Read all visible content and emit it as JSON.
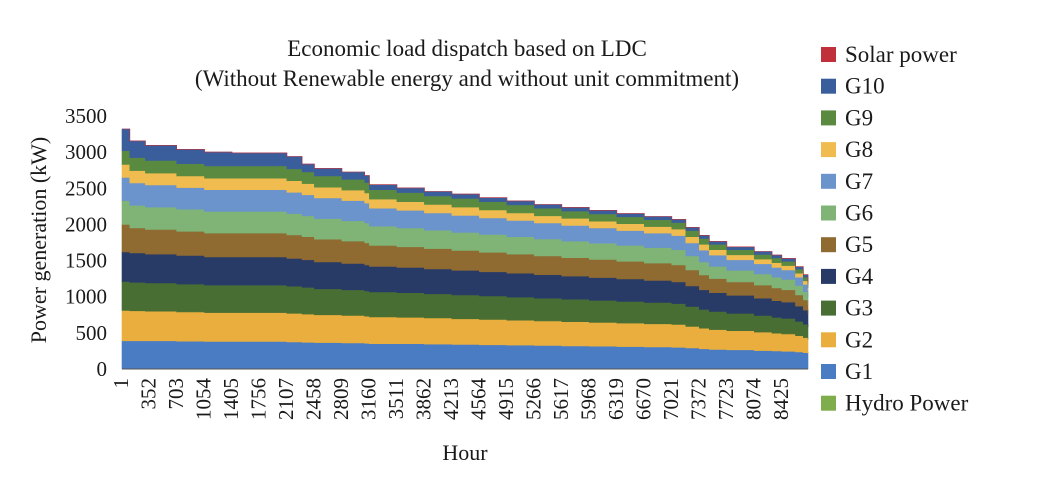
{
  "chart_data": {
    "type": "area",
    "title": [
      "Economic load dispatch based on LDC",
      "(Without Renewable energy and without unit commitment)"
    ],
    "xlabel": "Hour",
    "ylabel": "Power generation (kW)",
    "ylim": [
      0,
      3500
    ],
    "yticks": [
      "0",
      "500",
      "1000",
      "1500",
      "2000",
      "2500",
      "3000",
      "3500"
    ],
    "xlim": [
      1,
      8760
    ],
    "xticks": [
      "1",
      "352",
      "703",
      "1054",
      "1405",
      "1756",
      "2107",
      "2458",
      "2809",
      "3160",
      "3511",
      "3862",
      "4213",
      "4564",
      "4915",
      "5266",
      "5617",
      "5968",
      "6319",
      "6670",
      "7021",
      "7372",
      "7723",
      "8074",
      "8425"
    ],
    "grid": false,
    "legend_position": "right",
    "legend": [
      "Solar power",
      "G10",
      "G9",
      "G8",
      "G7",
      "G6",
      "G5",
      "G4",
      "G3",
      "G2",
      "G1",
      "Hydro Power"
    ],
    "x": [
      1,
      100,
      300,
      700,
      1054,
      1405,
      2107,
      2300,
      2458,
      2809,
      3100,
      3160,
      3511,
      3862,
      4213,
      4564,
      4915,
      5266,
      5617,
      5968,
      6319,
      6670,
      7021,
      7200,
      7372,
      7500,
      7723,
      8074,
      8300,
      8425,
      8600,
      8700,
      8760
    ],
    "series": [
      {
        "name": "Hydro Power",
        "color": "#7fad4b",
        "values": [
          0,
          0,
          0,
          0,
          0,
          0,
          0,
          0,
          0,
          0,
          0,
          0,
          0,
          0,
          0,
          0,
          0,
          0,
          0,
          0,
          0,
          0,
          0,
          0,
          0,
          0,
          0,
          0,
          0,
          0,
          0,
          0,
          0
        ]
      },
      {
        "name": "G1",
        "color": "#4a7cc4",
        "values": [
          390,
          390,
          390,
          385,
          380,
          380,
          375,
          370,
          365,
          360,
          355,
          350,
          350,
          345,
          340,
          335,
          330,
          325,
          320,
          315,
          310,
          305,
          300,
          290,
          280,
          270,
          265,
          255,
          250,
          245,
          235,
          225,
          215
        ]
      },
      {
        "name": "G2",
        "color": "#e9ae3d",
        "values": [
          420,
          415,
          410,
          405,
          400,
          400,
          395,
          390,
          385,
          380,
          375,
          370,
          365,
          360,
          355,
          350,
          345,
          340,
          335,
          330,
          325,
          320,
          315,
          300,
          285,
          275,
          265,
          255,
          245,
          240,
          225,
          210,
          195
        ]
      },
      {
        "name": "G3",
        "color": "#486e34",
        "values": [
          400,
          395,
          390,
          385,
          380,
          380,
          375,
          370,
          360,
          355,
          350,
          345,
          340,
          335,
          330,
          325,
          320,
          315,
          310,
          305,
          300,
          295,
          290,
          275,
          260,
          250,
          240,
          230,
          220,
          215,
          200,
          185,
          170
        ]
      },
      {
        "name": "G4",
        "color": "#283b67",
        "values": [
          410,
          405,
          400,
          395,
          390,
          390,
          385,
          380,
          370,
          365,
          360,
          355,
          350,
          345,
          340,
          335,
          330,
          325,
          320,
          315,
          310,
          305,
          300,
          285,
          270,
          260,
          250,
          240,
          230,
          225,
          210,
          195,
          180
        ]
      },
      {
        "name": "G5",
        "color": "#8f6a31",
        "values": [
          380,
          345,
          340,
          335,
          330,
          330,
          325,
          320,
          315,
          310,
          305,
          290,
          285,
          280,
          275,
          270,
          265,
          260,
          255,
          250,
          245,
          240,
          235,
          220,
          205,
          195,
          185,
          180,
          175,
          170,
          155,
          140,
          125
        ]
      },
      {
        "name": "G6",
        "color": "#7fb476",
        "values": [
          330,
          315,
          310,
          305,
          300,
          300,
          295,
          290,
          285,
          280,
          275,
          265,
          260,
          255,
          250,
          245,
          240,
          235,
          230,
          225,
          220,
          215,
          210,
          195,
          180,
          170,
          160,
          155,
          150,
          145,
          130,
          115,
          100
        ]
      },
      {
        "name": "G7",
        "color": "#6b93cc",
        "values": [
          320,
          310,
          305,
          300,
          300,
          300,
          295,
          290,
          285,
          280,
          275,
          250,
          245,
          240,
          235,
          230,
          225,
          220,
          215,
          210,
          205,
          200,
          195,
          180,
          165,
          155,
          145,
          140,
          135,
          130,
          115,
          100,
          90
        ]
      },
      {
        "name": "G8",
        "color": "#f0bc4f",
        "values": [
          180,
          170,
          165,
          160,
          160,
          160,
          160,
          155,
          150,
          145,
          140,
          125,
          120,
          115,
          115,
          110,
          105,
          100,
          100,
          95,
          95,
          90,
          90,
          85,
          80,
          75,
          70,
          65,
          65,
          60,
          55,
          50,
          45
        ]
      },
      {
        "name": "G9",
        "color": "#5a8a3f",
        "values": [
          190,
          180,
          175,
          170,
          170,
          170,
          165,
          160,
          155,
          150,
          145,
          130,
          125,
          120,
          120,
          115,
          110,
          105,
          100,
          100,
          95,
          95,
          90,
          85,
          80,
          75,
          70,
          65,
          65,
          60,
          55,
          50,
          45
        ]
      },
      {
        "name": "G10",
        "color": "#3a5e9c",
        "values": [
          300,
          230,
          210,
          200,
          190,
          180,
          170,
          110,
          105,
          100,
          95,
          70,
          65,
          60,
          60,
          55,
          55,
          50,
          50,
          50,
          45,
          45,
          45,
          45,
          45,
          40,
          40,
          40,
          40,
          40,
          35,
          35,
          35
        ]
      },
      {
        "name": "Solar power",
        "color": "#c0303b",
        "values": [
          0,
          0,
          0,
          0,
          0,
          0,
          0,
          0,
          0,
          0,
          0,
          0,
          0,
          0,
          0,
          0,
          0,
          0,
          0,
          0,
          0,
          0,
          0,
          0,
          0,
          0,
          0,
          0,
          0,
          0,
          0,
          0,
          0
        ]
      }
    ]
  }
}
